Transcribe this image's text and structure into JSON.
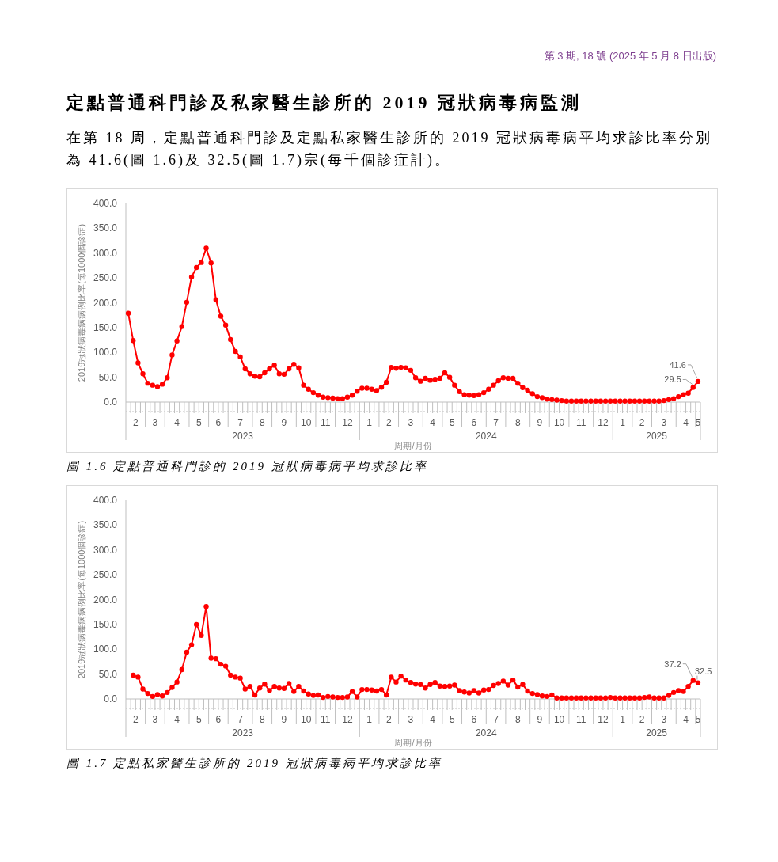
{
  "chart_data": [
    {
      "type": "line",
      "title": "圖 1.6 定點普通科門診的 2019 冠狀病毒病平均求診比率",
      "annotations": [
        "第 3 期, 18 號 (2025 年 5 月 8 日出版)",
        "定點普通科門診及私家醫生診所的 2019 冠狀病毒病監測",
        "在第 18 周，定點普通科門診及定點私家醫生診所的 2019 冠狀病毒病平均求診比率分別為 41.6(圖 1.6)及 32.5(圖 1.7)宗(每千個診症計)。"
      ],
      "xlabel": "周期/月份",
      "ylabel": "2019冠狀病毒病病例比率(每1000個診症)",
      "x": [
        "2023-02-04",
        "2023-02-11",
        "2023-02-18",
        "2023-02-25",
        "2023-03-04",
        "2023-03-11",
        "2023-03-18",
        "2023-03-25",
        "2023-04-01",
        "2023-04-08",
        "2023-04-15",
        "2023-04-22",
        "2023-04-29",
        "2023-05-06",
        "2023-05-13",
        "2023-05-20",
        "2023-05-27",
        "2023-06-03",
        "2023-06-10",
        "2023-06-17",
        "2023-06-24",
        "2023-07-01",
        "2023-07-08",
        "2023-07-15",
        "2023-07-22",
        "2023-07-29",
        "2023-08-05",
        "2023-08-12",
        "2023-08-19",
        "2023-08-26",
        "2023-09-02",
        "2023-09-09",
        "2023-09-16",
        "2023-09-23",
        "2023-09-30",
        "2023-10-07",
        "2023-10-14",
        "2023-10-21",
        "2023-10-28",
        "2023-11-04",
        "2023-11-11",
        "2023-11-18",
        "2023-11-25",
        "2023-12-02",
        "2023-12-09",
        "2023-12-16",
        "2023-12-23",
        "2023-12-30",
        "2024-01-06",
        "2024-01-13",
        "2024-01-20",
        "2024-01-27",
        "2024-02-03",
        "2024-02-10",
        "2024-02-17",
        "2024-02-24",
        "2024-03-02",
        "2024-03-09",
        "2024-03-16",
        "2024-03-23",
        "2024-03-30",
        "2024-04-06",
        "2024-04-13",
        "2024-04-20",
        "2024-04-27",
        "2024-05-04",
        "2024-05-11",
        "2024-05-18",
        "2024-05-25",
        "2024-06-01",
        "2024-06-08",
        "2024-06-15",
        "2024-06-22",
        "2024-06-29",
        "2024-07-06",
        "2024-07-13",
        "2024-07-20",
        "2024-07-27",
        "2024-08-03",
        "2024-08-10",
        "2024-08-17",
        "2024-08-24",
        "2024-08-31",
        "2024-09-07",
        "2024-09-14",
        "2024-09-21",
        "2024-09-28",
        "2024-10-05",
        "2024-10-12",
        "2024-10-19",
        "2024-10-26",
        "2024-11-02",
        "2024-11-09",
        "2024-11-16",
        "2024-11-23",
        "2024-11-30",
        "2024-12-07",
        "2024-12-14",
        "2024-12-21",
        "2024-12-28",
        "2025-01-04",
        "2025-01-11",
        "2025-01-18",
        "2025-01-25",
        "2025-02-01",
        "2025-02-08",
        "2025-02-15",
        "2025-02-22",
        "2025-03-01",
        "2025-03-08",
        "2025-03-15",
        "2025-03-22",
        "2025-03-29",
        "2025-04-05",
        "2025-04-12",
        "2025-04-19",
        "2025-04-26",
        "2025-05-03"
      ],
      "values": [
        179,
        124,
        79,
        57,
        38,
        34,
        31,
        36,
        49,
        95,
        123,
        152,
        201,
        252,
        271,
        281,
        310,
        280,
        206,
        173,
        155,
        126,
        102,
        91,
        67,
        57,
        52,
        51,
        59,
        67,
        74,
        57,
        56,
        67,
        76,
        69,
        34,
        26,
        19,
        14,
        10,
        9,
        8,
        7,
        7,
        10,
        14,
        22,
        28,
        28,
        26,
        23,
        30,
        40,
        70,
        68,
        70,
        69,
        64,
        49,
        42,
        48,
        44,
        46,
        48,
        59,
        50,
        34,
        21,
        15,
        14,
        13,
        15,
        19,
        26,
        34,
        43,
        49,
        48,
        48,
        38,
        29,
        24,
        17,
        11,
        9,
        6,
        5,
        4,
        3,
        2,
        2,
        2,
        2,
        2,
        2,
        2,
        2,
        2,
        2,
        2,
        2,
        2,
        2,
        2,
        2,
        2,
        2,
        2,
        2,
        3,
        5,
        7,
        11,
        15,
        18,
        29.5,
        41.6
      ],
      "value_labels": [
        null,
        null,
        null,
        null,
        null,
        null,
        null,
        null,
        null,
        null,
        null,
        null,
        null,
        null,
        null,
        null,
        null,
        null,
        null,
        null,
        null,
        null,
        null,
        null,
        null,
        null,
        null,
        null,
        null,
        null,
        null,
        null,
        null,
        null,
        null,
        null,
        null,
        null,
        null,
        null,
        null,
        null,
        null,
        null,
        null,
        null,
        null,
        null,
        null,
        null,
        null,
        null,
        null,
        null,
        null,
        null,
        null,
        null,
        null,
        null,
        null,
        null,
        null,
        null,
        null,
        null,
        null,
        null,
        null,
        null,
        null,
        null,
        null,
        null,
        null,
        null,
        null,
        null,
        null,
        null,
        null,
        null,
        null,
        null,
        null,
        null,
        null,
        null,
        null,
        null,
        null,
        null,
        null,
        null,
        null,
        null,
        null,
        null,
        null,
        null,
        null,
        null,
        null,
        null,
        null,
        null,
        null,
        null,
        null,
        null,
        null,
        null,
        null,
        null,
        null,
        null,
        "29.5",
        "41.6"
      ],
      "color": "#ff0000",
      "marker": "circle",
      "line_style": "solid",
      "xlim": [
        "2023-01-31T12:00",
        "2025-05-06T12:00"
      ],
      "xticks": [
        {
          "value": "2023-01-31T12:00",
          "label": null
        },
        {
          "value": "2023-02-28T12:00",
          "label": null
        },
        {
          "value": "2023-03-28T12:00",
          "label": null
        },
        {
          "value": "2023-05-02T12:00",
          "label": null
        },
        {
          "value": "2023-05-30T12:00",
          "label": null
        },
        {
          "value": "2023-06-27T12:00",
          "label": null
        },
        {
          "value": "2023-08-01T12:00",
          "label": null
        },
        {
          "value": "2023-08-29T12:00",
          "label": null
        },
        {
          "value": "2023-10-03T12:00",
          "label": null
        },
        {
          "value": "2023-10-31T12:00",
          "label": null
        },
        {
          "value": "2023-11-28T12:00",
          "label": null
        },
        {
          "value": "2024-01-02T12:00",
          "label": null
        },
        {
          "value": "2024-01-30T12:00",
          "label": null
        },
        {
          "value": "2024-02-27T12:00",
          "label": null
        },
        {
          "value": "2024-04-02T12:00",
          "label": null
        },
        {
          "value": "2024-04-30T12:00",
          "label": null
        },
        {
          "value": "2024-05-28T12:00",
          "label": null
        },
        {
          "value": "2024-07-02T12:00",
          "label": null
        },
        {
          "value": "2024-07-30T12:00",
          "label": null
        },
        {
          "value": "2024-09-03T12:00",
          "label": null
        },
        {
          "value": "2024-10-01T12:00",
          "label": null
        },
        {
          "value": "2024-10-29T12:00",
          "label": null
        },
        {
          "value": "2024-12-03T12:00",
          "label": null
        },
        {
          "value": "2024-12-31T12:00",
          "label": null
        },
        {
          "value": "2025-01-28T12:00",
          "label": null
        },
        {
          "value": "2025-02-25T12:00",
          "label": null
        },
        {
          "value": "2025-04-01T12:00",
          "label": null
        },
        {
          "value": "2025-04-29T12:00",
          "label": null
        },
        {
          "value": "2025-05-06T12:00",
          "label": null
        },
        {
          "value": "2023-02-14T12:00",
          "label": "2"
        },
        {
          "value": "2023-03-14T12:00",
          "label": "3"
        },
        {
          "value": "2023-04-15",
          "label": "4"
        },
        {
          "value": "2023-05-16T12:00",
          "label": "5"
        },
        {
          "value": "2023-06-13T12:00",
          "label": "6"
        },
        {
          "value": "2023-07-15",
          "label": "7"
        },
        {
          "value": "2023-08-15T12:00",
          "label": "8"
        },
        {
          "value": "2023-09-16",
          "label": "9"
        },
        {
          "value": "2023-10-17T12:00",
          "label": "10"
        },
        {
          "value": "2023-11-14T12:00",
          "label": "11"
        },
        {
          "value": "2023-12-16",
          "label": "12"
        },
        {
          "value": "2024-01-16T12:00",
          "label": "1"
        },
        {
          "value": "2024-02-13T12:00",
          "label": "2"
        },
        {
          "value": "2024-03-16",
          "label": "3"
        },
        {
          "value": "2024-04-16T12:00",
          "label": "4"
        },
        {
          "value": "2024-05-14T12:00",
          "label": "5"
        },
        {
          "value": "2024-06-15",
          "label": "6"
        },
        {
          "value": "2024-07-16T12:00",
          "label": "7"
        },
        {
          "value": "2024-08-17",
          "label": "8"
        },
        {
          "value": "2024-09-17T12:00",
          "label": "9"
        },
        {
          "value": "2024-10-15T12:00",
          "label": "10"
        },
        {
          "value": "2024-11-16",
          "label": "11"
        },
        {
          "value": "2024-12-17T12:00",
          "label": "12"
        },
        {
          "value": "2025-01-14T12:00",
          "label": "1"
        },
        {
          "value": "2025-02-11T12:00",
          "label": "2"
        },
        {
          "value": "2025-03-15",
          "label": "3"
        },
        {
          "value": "2025-04-15T12:00",
          "label": "4"
        },
        {
          "value": "2025-05-03",
          "label": "5"
        }
      ],
      "x2lim": [
        "2023-01-31T12:00",
        "2025-05-06T12:00"
      ],
      "x2ticks": [
        {
          "value": "2023-07-18T12:00",
          "label": "2023"
        },
        {
          "value": "2024-07-02T12:00",
          "label": "2024"
        },
        {
          "value": "2025-03-04T12:00",
          "label": "2025"
        }
      ],
      "ylim": [
        0,
        400
      ],
      "yticks": [
        {
          "value": 0,
          "label": "0.0"
        },
        {
          "value": 50,
          "label": "50.0"
        },
        {
          "value": 100,
          "label": "100.0"
        },
        {
          "value": 150,
          "label": "150.0"
        },
        {
          "value": 200,
          "label": "200.0"
        },
        {
          "value": 250,
          "label": "250.0"
        },
        {
          "value": 300,
          "label": "300.0"
        },
        {
          "value": 350,
          "label": "350.0"
        },
        {
          "value": 400,
          "label": "400.0"
        }
      ]
    },
    {
      "type": "line",
      "title": "圖 1.7 定點私家醫生診所的 2019 冠狀病毒病平均求診比率",
      "xlabel": "周期/月份",
      "ylabel": "2019冠狀病毒病病例比率(每1000個診症)",
      "x": [
        "2023-02-11",
        "2023-02-18",
        "2023-02-25",
        "2023-03-04",
        "2023-03-11",
        "2023-03-18",
        "2023-03-25",
        "2023-04-01",
        "2023-04-08",
        "2023-04-15",
        "2023-04-22",
        "2023-04-29",
        "2023-05-06",
        "2023-05-13",
        "2023-05-20",
        "2023-05-27",
        "2023-06-03",
        "2023-06-10",
        "2023-06-17",
        "2023-06-24",
        "2023-07-01",
        "2023-07-08",
        "2023-07-15",
        "2023-07-22",
        "2023-07-29",
        "2023-08-05",
        "2023-08-12",
        "2023-08-19",
        "2023-08-26",
        "2023-09-02",
        "2023-09-09",
        "2023-09-16",
        "2023-09-23",
        "2023-09-30",
        "2023-10-07",
        "2023-10-14",
        "2023-10-21",
        "2023-10-28",
        "2023-11-04",
        "2023-11-11",
        "2023-11-18",
        "2023-11-25",
        "2023-12-02",
        "2023-12-09",
        "2023-12-16",
        "2023-12-23",
        "2023-12-30",
        "2024-01-06",
        "2024-01-13",
        "2024-01-20",
        "2024-01-27",
        "2024-02-03",
        "2024-02-10",
        "2024-02-17",
        "2024-02-24",
        "2024-03-02",
        "2024-03-09",
        "2024-03-16",
        "2024-03-23",
        "2024-03-30",
        "2024-04-06",
        "2024-04-13",
        "2024-04-20",
        "2024-04-27",
        "2024-05-04",
        "2024-05-11",
        "2024-05-18",
        "2024-05-25",
        "2024-06-01",
        "2024-06-08",
        "2024-06-15",
        "2024-06-22",
        "2024-06-29",
        "2024-07-06",
        "2024-07-13",
        "2024-07-20",
        "2024-07-27",
        "2024-08-03",
        "2024-08-10",
        "2024-08-17",
        "2024-08-24",
        "2024-08-31",
        "2024-09-07",
        "2024-09-14",
        "2024-09-21",
        "2024-09-28",
        "2024-10-05",
        "2024-10-12",
        "2024-10-19",
        "2024-10-26",
        "2024-11-02",
        "2024-11-09",
        "2024-11-16",
        "2024-11-23",
        "2024-11-30",
        "2024-12-07",
        "2024-12-14",
        "2024-12-21",
        "2024-12-28",
        "2025-01-04",
        "2025-01-11",
        "2025-01-18",
        "2025-01-25",
        "2025-02-01",
        "2025-02-08",
        "2025-02-15",
        "2025-02-22",
        "2025-03-01",
        "2025-03-08",
        "2025-03-15",
        "2025-03-22",
        "2025-03-29",
        "2025-04-05",
        "2025-04-12",
        "2025-04-19",
        "2025-04-26",
        "2025-05-03"
      ],
      "values": [
        48,
        44,
        20,
        11,
        5,
        9,
        6,
        13,
        23,
        34,
        59,
        94,
        109,
        150,
        128,
        186,
        82,
        81,
        70,
        66,
        48,
        44,
        42,
        20,
        25,
        8,
        22,
        30,
        17,
        25,
        22,
        21,
        31,
        15,
        25,
        16,
        10,
        7,
        8,
        3,
        5,
        4,
        3,
        3,
        4,
        15,
        4,
        19,
        19,
        18,
        16,
        19,
        8,
        44,
        34,
        46,
        38,
        33,
        30,
        29,
        22,
        29,
        33,
        26,
        25,
        26,
        28,
        17,
        14,
        12,
        17,
        12,
        18,
        19,
        27,
        31,
        36,
        28,
        38,
        24,
        29,
        16,
        11,
        9,
        6,
        5,
        8,
        2,
        2,
        2,
        2,
        2,
        2,
        2,
        2,
        2,
        2,
        2,
        3,
        2,
        2,
        2,
        2,
        2,
        2,
        3,
        4,
        2,
        2,
        2,
        7,
        13,
        17,
        15,
        25,
        37.2,
        32.5
      ],
      "value_labels": [
        null,
        null,
        null,
        null,
        null,
        null,
        null,
        null,
        null,
        null,
        null,
        null,
        null,
        null,
        null,
        null,
        null,
        null,
        null,
        null,
        null,
        null,
        null,
        null,
        null,
        null,
        null,
        null,
        null,
        null,
        null,
        null,
        null,
        null,
        null,
        null,
        null,
        null,
        null,
        null,
        null,
        null,
        null,
        null,
        null,
        null,
        null,
        null,
        null,
        null,
        null,
        null,
        null,
        null,
        null,
        null,
        null,
        null,
        null,
        null,
        null,
        null,
        null,
        null,
        null,
        null,
        null,
        null,
        null,
        null,
        null,
        null,
        null,
        null,
        null,
        null,
        null,
        null,
        null,
        null,
        null,
        null,
        null,
        null,
        null,
        null,
        null,
        null,
        null,
        null,
        null,
        null,
        null,
        null,
        null,
        null,
        null,
        null,
        null,
        null,
        null,
        null,
        null,
        null,
        null,
        null,
        null,
        null,
        null,
        null,
        null,
        null,
        null,
        null,
        null,
        "37.2",
        "32.5"
      ],
      "color": "#ff0000",
      "marker": "circle",
      "line_style": "solid",
      "xlim": [
        "2023-01-31T12:00",
        "2025-05-06T12:00"
      ],
      "xticks": [
        {
          "value": "2023-01-31T12:00",
          "label": null
        },
        {
          "value": "2023-02-28T12:00",
          "label": null
        },
        {
          "value": "2023-03-28T12:00",
          "label": null
        },
        {
          "value": "2023-05-02T12:00",
          "label": null
        },
        {
          "value": "2023-05-30T12:00",
          "label": null
        },
        {
          "value": "2023-06-27T12:00",
          "label": null
        },
        {
          "value": "2023-08-01T12:00",
          "label": null
        },
        {
          "value": "2023-08-29T12:00",
          "label": null
        },
        {
          "value": "2023-10-03T12:00",
          "label": null
        },
        {
          "value": "2023-10-31T12:00",
          "label": null
        },
        {
          "value": "2023-11-28T12:00",
          "label": null
        },
        {
          "value": "2024-01-02T12:00",
          "label": null
        },
        {
          "value": "2024-01-30T12:00",
          "label": null
        },
        {
          "value": "2024-02-27T12:00",
          "label": null
        },
        {
          "value": "2024-04-02T12:00",
          "label": null
        },
        {
          "value": "2024-04-30T12:00",
          "label": null
        },
        {
          "value": "2024-05-28T12:00",
          "label": null
        },
        {
          "value": "2024-07-02T12:00",
          "label": null
        },
        {
          "value": "2024-07-30T12:00",
          "label": null
        },
        {
          "value": "2024-09-03T12:00",
          "label": null
        },
        {
          "value": "2024-10-01T12:00",
          "label": null
        },
        {
          "value": "2024-10-29T12:00",
          "label": null
        },
        {
          "value": "2024-12-03T12:00",
          "label": null
        },
        {
          "value": "2024-12-31T12:00",
          "label": null
        },
        {
          "value": "2025-01-28T12:00",
          "label": null
        },
        {
          "value": "2025-02-25T12:00",
          "label": null
        },
        {
          "value": "2025-04-01T12:00",
          "label": null
        },
        {
          "value": "2025-04-29T12:00",
          "label": null
        },
        {
          "value": "2025-05-06T12:00",
          "label": null
        },
        {
          "value": "2023-02-14T12:00",
          "label": "2"
        },
        {
          "value": "2023-03-14T12:00",
          "label": "3"
        },
        {
          "value": "2023-04-15",
          "label": "4"
        },
        {
          "value": "2023-05-16T12:00",
          "label": "5"
        },
        {
          "value": "2023-06-13T12:00",
          "label": "6"
        },
        {
          "value": "2023-07-15",
          "label": "7"
        },
        {
          "value": "2023-08-15T12:00",
          "label": "8"
        },
        {
          "value": "2023-09-16",
          "label": "9"
        },
        {
          "value": "2023-10-17T12:00",
          "label": "10"
        },
        {
          "value": "2023-11-14T12:00",
          "label": "11"
        },
        {
          "value": "2023-12-16",
          "label": "12"
        },
        {
          "value": "2024-01-16T12:00",
          "label": "1"
        },
        {
          "value": "2024-02-13T12:00",
          "label": "2"
        },
        {
          "value": "2024-03-16",
          "label": "3"
        },
        {
          "value": "2024-04-16T12:00",
          "label": "4"
        },
        {
          "value": "2024-05-14T12:00",
          "label": "5"
        },
        {
          "value": "2024-06-15",
          "label": "6"
        },
        {
          "value": "2024-07-16T12:00",
          "label": "7"
        },
        {
          "value": "2024-08-17",
          "label": "8"
        },
        {
          "value": "2024-09-17T12:00",
          "label": "9"
        },
        {
          "value": "2024-10-15T12:00",
          "label": "10"
        },
        {
          "value": "2024-11-16",
          "label": "11"
        },
        {
          "value": "2024-12-17T12:00",
          "label": "12"
        },
        {
          "value": "2025-01-14T12:00",
          "label": "1"
        },
        {
          "value": "2025-02-11T12:00",
          "label": "2"
        },
        {
          "value": "2025-03-15",
          "label": "3"
        },
        {
          "value": "2025-04-15T12:00",
          "label": "4"
        },
        {
          "value": "2025-05-03",
          "label": "5"
        }
      ],
      "x2lim": [
        "2023-01-31T12:00",
        "2025-05-06T12:00"
      ],
      "x2ticks": [
        {
          "value": "2023-07-18T12:00",
          "label": "2023"
        },
        {
          "value": "2024-07-02T12:00",
          "label": "2024"
        },
        {
          "value": "2025-03-04T12:00",
          "label": "2025"
        }
      ],
      "ylim": [
        0,
        400
      ],
      "yticks": [
        {
          "value": 0,
          "label": "0.0"
        },
        {
          "value": 50,
          "label": "50.0"
        },
        {
          "value": 100,
          "label": "100.0"
        },
        {
          "value": 150,
          "label": "150.0"
        },
        {
          "value": 200,
          "label": "200.0"
        },
        {
          "value": 250,
          "label": "250.0"
        },
        {
          "value": 300,
          "label": "300.0"
        },
        {
          "value": 350,
          "label": "350.0"
        },
        {
          "value": 400,
          "label": "400.0"
        }
      ]
    }
  ]
}
